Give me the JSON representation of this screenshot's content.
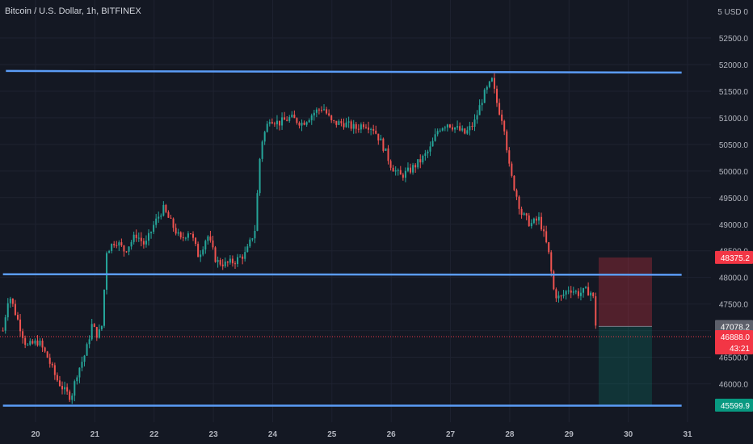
{
  "chart_data": {
    "type": "candlestick",
    "title": "Bitcoin / U.S. Dollar, 1h, BITFINEX",
    "currency_label": "5 USD 0",
    "y_ticks": [
      46000,
      46500,
      47000,
      47500,
      48000,
      48500,
      49000,
      49500,
      50000,
      50500,
      51000,
      51500,
      52000,
      52500
    ],
    "y_tick_labels": [
      "46000.0",
      "46500.0",
      "47000.0",
      "47500.0",
      "48000.0",
      "48500.0",
      "49000.0",
      "49500.0",
      "50000.0",
      "50500.0",
      "51000.0",
      "51500.0",
      "52000.0",
      "52500.0"
    ],
    "x_ticks": [
      20,
      21,
      22,
      23,
      24,
      25,
      26,
      27,
      28,
      29,
      30,
      31
    ],
    "x_tick_labels": [
      "20",
      "21",
      "22",
      "23",
      "24",
      "25",
      "26",
      "27",
      "28",
      "29",
      "30",
      "31"
    ],
    "ylim": [
      45500,
      53000
    ],
    "xlim": [
      19.45,
      31.25
    ],
    "horizontal_lines": [
      {
        "y_start": 51880,
        "y_end": 51850,
        "x_start": 19.5,
        "x_end": 30.9
      },
      {
        "y_start": 48060,
        "y_end": 48050,
        "x_start": 19.45,
        "x_end": 30.9
      },
      {
        "y_start": 45590,
        "y_end": 45590,
        "x_start": 19.45,
        "x_end": 30.9
      }
    ],
    "position": {
      "entry": 47078.2,
      "stop": 48375.2,
      "target": 45599.9,
      "x_start": 29.5,
      "x_end": 30.4
    },
    "current_price": 46888.0,
    "price_labels": {
      "stop": "48375.2",
      "entry": "47078.2",
      "current": "46888.0",
      "countdown": "43:21",
      "target": "45599.9"
    },
    "price_path": [
      [
        19.45,
        47000
      ],
      [
        19.55,
        47700
      ],
      [
        19.7,
        47200
      ],
      [
        19.85,
        46700
      ],
      [
        20.05,
        46800
      ],
      [
        20.2,
        46500
      ],
      [
        20.35,
        46100
      ],
      [
        20.5,
        45850
      ],
      [
        20.6,
        45750
      ],
      [
        20.7,
        46200
      ],
      [
        20.85,
        46600
      ],
      [
        20.95,
        47100
      ],
      [
        21.05,
        46900
      ],
      [
        21.12,
        47100
      ],
      [
        21.2,
        48500
      ],
      [
        21.35,
        48700
      ],
      [
        21.5,
        48500
      ],
      [
        21.7,
        48800
      ],
      [
        21.85,
        48600
      ],
      [
        22.0,
        49000
      ],
      [
        22.15,
        49300
      ],
      [
        22.3,
        49000
      ],
      [
        22.45,
        48700
      ],
      [
        22.6,
        48900
      ],
      [
        22.75,
        48400
      ],
      [
        22.9,
        48800
      ],
      [
        23.05,
        48300
      ],
      [
        23.2,
        48250
      ],
      [
        23.35,
        48300
      ],
      [
        23.55,
        48450
      ],
      [
        23.7,
        48900
      ],
      [
        23.8,
        50500
      ],
      [
        23.95,
        51000
      ],
      [
        24.1,
        50900
      ],
      [
        24.3,
        51000
      ],
      [
        24.5,
        50900
      ],
      [
        24.7,
        51100
      ],
      [
        24.85,
        51200
      ],
      [
        25.0,
        50900
      ],
      [
        25.2,
        50900
      ],
      [
        25.4,
        50800
      ],
      [
        25.55,
        50900
      ],
      [
        25.7,
        50800
      ],
      [
        25.85,
        50500
      ],
      [
        26.0,
        50100
      ],
      [
        26.15,
        49900
      ],
      [
        26.3,
        50000
      ],
      [
        26.5,
        50200
      ],
      [
        26.65,
        50400
      ],
      [
        26.8,
        50800
      ],
      [
        26.95,
        50900
      ],
      [
        27.1,
        50800
      ],
      [
        27.25,
        50700
      ],
      [
        27.4,
        50900
      ],
      [
        27.55,
        51400
      ],
      [
        27.7,
        51700
      ],
      [
        27.8,
        51200
      ],
      [
        27.9,
        50900
      ],
      [
        28.0,
        50000
      ],
      [
        28.1,
        49600
      ],
      [
        28.2,
        49200
      ],
      [
        28.35,
        49000
      ],
      [
        28.5,
        49100
      ],
      [
        28.65,
        48500
      ],
      [
        28.75,
        47700
      ],
      [
        28.85,
        47600
      ],
      [
        29.0,
        47800
      ],
      [
        29.15,
        47700
      ],
      [
        29.3,
        47750
      ],
      [
        29.4,
        47700
      ],
      [
        29.47,
        46900
      ]
    ]
  }
}
